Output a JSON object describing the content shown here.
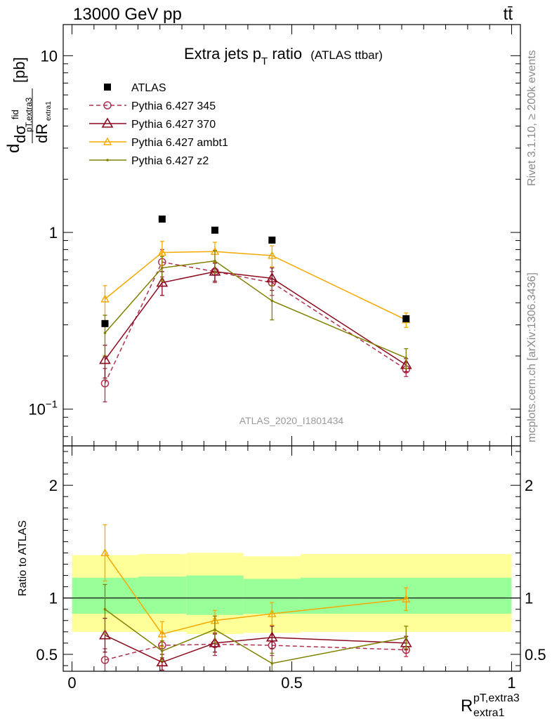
{
  "header": {
    "left": "13000 GeV pp",
    "right": "tt̄"
  },
  "side_labels": {
    "top": "Rivet 3.1.10, ≥ 200k events",
    "bottom": "mcplots.cern.ch [arXiv:1306.3436]"
  },
  "watermark": "ATLAS_2020_I1801434",
  "chart_data": {
    "type": "line",
    "title": "Extra jets p",
    "title_sub": "T",
    "title_rest": " ratio",
    "title_note": "(ATLAS ttbar)",
    "ylabel": {
      "d1": "d",
      "sigma": "dσ",
      "fid": "fid",
      "sub_top": "pT,extra3",
      "dR": "dR",
      "sub_bottom": "extra1",
      "unit": "[pb]"
    },
    "xlabel": {
      "main": "R",
      "sup": "pT,extra3",
      "sub": "extra1"
    },
    "ratio_ylabel": "Ratio to ATLAS",
    "x": [
      0.075,
      0.205,
      0.325,
      0.455,
      0.76
    ],
    "xlim": [
      -0.02,
      1.02
    ],
    "ylim_main": [
      0.062,
      15
    ],
    "y_scale_main": "log",
    "ylim_ratio": [
      0.35,
      2.35
    ],
    "main_ticks": [
      {
        "v": 0.1,
        "base": "10",
        "exp": "−1"
      },
      {
        "v": 1,
        "base": "1",
        "exp": ""
      },
      {
        "v": 10,
        "base": "10",
        "exp": ""
      }
    ],
    "ratio_ticks": [
      {
        "v": 0.5,
        "label": "0.5"
      },
      {
        "v": 1,
        "label": "1"
      },
      {
        "v": 2,
        "label": "2"
      }
    ],
    "x_ticks": [
      {
        "v": 0,
        "label": "0"
      },
      {
        "v": 0.5,
        "label": "0.5"
      },
      {
        "v": 1,
        "label": "1"
      }
    ],
    "legend_position": "top-left",
    "data": {
      "name": "ATLAS",
      "values": [
        0.305,
        1.19,
        1.03,
        0.905,
        0.325
      ]
    },
    "bands": {
      "edges": [
        0.0,
        0.15,
        0.26,
        0.39,
        0.52,
        1.0
      ],
      "yellow_lo": [
        0.7,
        0.7,
        0.68,
        0.69,
        0.7
      ],
      "yellow_hi": [
        1.38,
        1.39,
        1.4,
        1.37,
        1.39
      ],
      "green_lo": [
        0.86,
        0.86,
        0.85,
        0.86,
        0.86
      ],
      "green_hi": [
        1.18,
        1.19,
        1.2,
        1.17,
        1.18
      ]
    },
    "series": [
      {
        "name": "Pythia 6.427 345",
        "color": "#b03050",
        "dashed": true,
        "marker": "circle",
        "values": [
          0.14,
          0.68,
          0.6,
          0.52,
          0.168
        ],
        "err": [
          0.03,
          0.12,
          0.08,
          0.08,
          0.015
        ],
        "ratio": [
          0.45,
          0.58,
          0.59,
          0.58,
          0.54
        ],
        "ratio_err": [
          0.1,
          0.11,
          0.1,
          0.09,
          0.06
        ]
      },
      {
        "name": "Pythia 6.427 370",
        "color": "#8b0a1e",
        "dashed": false,
        "marker": "triangle",
        "values": [
          0.19,
          0.52,
          0.6,
          0.55,
          0.178
        ],
        "err": [
          0.04,
          0.08,
          0.07,
          0.08,
          0.015
        ],
        "ratio": [
          0.67,
          0.43,
          0.6,
          0.65,
          0.6
        ],
        "ratio_err": [
          0.15,
          0.07,
          0.08,
          0.1,
          0.06
        ]
      },
      {
        "name": "Pythia 6.427 ambt1",
        "color": "#f5a800",
        "dashed": false,
        "marker": "triangle-small",
        "values": [
          0.42,
          0.77,
          0.78,
          0.74,
          0.32
        ],
        "err": [
          0.08,
          0.12,
          0.1,
          0.1,
          0.03
        ],
        "ratio": [
          1.4,
          0.68,
          0.8,
          0.86,
          0.99
        ],
        "ratio_err": [
          0.25,
          0.11,
          0.09,
          0.1,
          0.1
        ]
      },
      {
        "name": "Pythia 6.427 z2",
        "color": "#808000",
        "dashed": false,
        "marker": "dot",
        "values": [
          0.27,
          0.63,
          0.69,
          0.41,
          0.195
        ],
        "err": [
          0.07,
          0.1,
          0.1,
          0.09,
          0.025
        ],
        "ratio": [
          0.9,
          0.53,
          0.72,
          0.42,
          0.65
        ],
        "ratio_err": [
          0.22,
          0.09,
          0.12,
          0.09,
          0.1
        ]
      }
    ]
  }
}
